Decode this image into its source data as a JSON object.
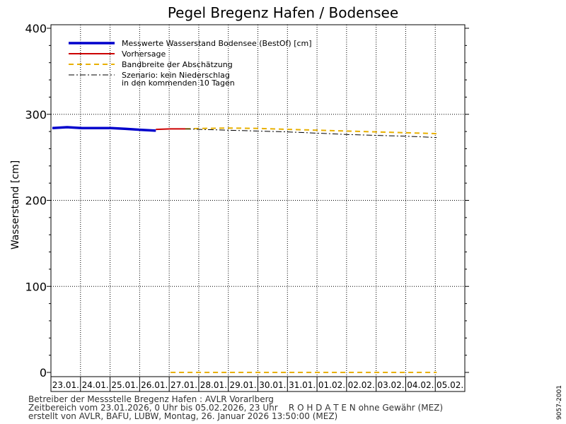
{
  "chart_data": {
    "type": "line",
    "title": "Pegel Bregenz Hafen / Bodensee",
    "ylabel": "Wasserstand [cm]",
    "xlabel": "",
    "ylim": [
      0,
      400
    ],
    "yticks": [
      0,
      100,
      200,
      300,
      400
    ],
    "grid": true,
    "legend_position": "top-left",
    "categories": [
      "23.01.",
      "24.01.",
      "25.01.",
      "26.01.",
      "27.01.",
      "28.01.",
      "29.01.",
      "30.01.",
      "31.01.",
      "01.02.",
      "02.02.",
      "03.02.",
      "04.02.",
      "05.02."
    ],
    "series": [
      {
        "name": "Messwerte Wasserstand Bodensee (BestOf)",
        "color": "#0000cc",
        "style": "thick",
        "x": [
          0,
          0.5,
          1,
          1.5,
          2,
          2.5,
          3,
          3.5
        ],
        "y": [
          284,
          285,
          284,
          284,
          284,
          283,
          282,
          281
        ]
      },
      {
        "name": "Vorhersage",
        "color": "#cc0000",
        "style": "solid",
        "x": [
          3.5,
          4.0,
          4.5
        ],
        "y": [
          282.5,
          283,
          283
        ]
      },
      {
        "name": "Bandbreite der Abschätzung",
        "color": "#e8b000",
        "style": "dashed",
        "x": [
          4.5,
          5,
          6,
          7,
          8,
          9,
          10,
          11,
          12,
          13
        ],
        "y": [
          283,
          283.5,
          284,
          283.5,
          282.5,
          281.5,
          280.5,
          279.5,
          278.5,
          277.5
        ]
      },
      {
        "name": "Szenario: kein Niederschlag in den kommenden 10 Tagen",
        "color": "#000000",
        "style": "dashdot",
        "x": [
          4.5,
          5,
          6,
          7,
          8,
          9,
          10,
          11,
          12,
          13
        ],
        "y": [
          283,
          282.5,
          281.5,
          280.5,
          279.5,
          278,
          276.5,
          275.5,
          274.5,
          273
        ]
      },
      {
        "name": "",
        "color": "#e8b000",
        "style": "dashed",
        "x": [
          4,
          13
        ],
        "y": [
          0,
          0
        ]
      }
    ]
  },
  "legend": {
    "items": [
      {
        "label": "Messwerte Wasserstand Bodensee (BestOf)   [cm]",
        "color": "#0000cc",
        "style": "thick"
      },
      {
        "label": "Vorhersage",
        "color": "#cc0000",
        "style": "solid"
      },
      {
        "label": "Bandbreite der Abschätzung",
        "color": "#e8b000",
        "style": "dashed"
      },
      {
        "label": "Szenario: kein Niederschlag",
        "color": "#000000",
        "style": "dashdot"
      }
    ],
    "continuation": "in den kommenden 10 Tagen"
  },
  "footer": {
    "line1": "Betreiber der Messstelle Bregenz Hafen : AVLR Vorarlberg",
    "line2": "Zeitbereich vom 23.01.2026, 0 Uhr bis 05.02.2026, 23 Uhr    R O H D A T E N ohne Gewähr (MEZ)",
    "line3": "erstellt von AVLR, BAFU, LUBW, Montag, 26. Januar 2026 13:50:00 (MEZ)"
  },
  "side_code": "9057-2001"
}
